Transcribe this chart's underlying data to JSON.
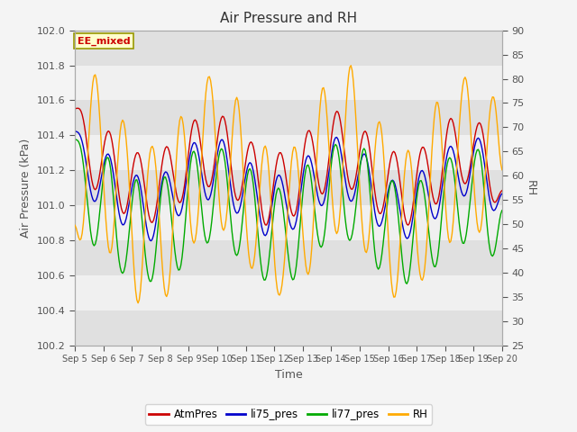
{
  "title": "Air Pressure and RH",
  "xlabel": "Time",
  "ylabel_left": "Air Pressure (kPa)",
  "ylabel_right": "RH",
  "annotation_text": "EE_mixed",
  "ylim_left": [
    100.2,
    102.0
  ],
  "ylim_right": [
    25,
    90
  ],
  "yticks_left": [
    100.2,
    100.4,
    100.6,
    100.8,
    101.0,
    101.2,
    101.4,
    101.6,
    101.8,
    102.0
  ],
  "yticks_right": [
    25,
    30,
    35,
    40,
    45,
    50,
    55,
    60,
    65,
    70,
    75,
    80,
    85,
    90
  ],
  "xtick_labels": [
    "Sep 5",
    "Sep 6",
    "Sep 7",
    "Sep 8",
    "Sep 9",
    "Sep 10",
    "Sep 11",
    "Sep 12",
    "Sep 13",
    "Sep 14",
    "Sep 15",
    "Sep 16",
    "Sep 17",
    "Sep 18",
    "Sep 19",
    "Sep 20"
  ],
  "colors": {
    "AtmPres": "#cc0000",
    "li75_pres": "#0000cc",
    "li77_pres": "#00aa00",
    "RH": "#ffaa00"
  },
  "legend_labels": [
    "AtmPres",
    "li75_pres",
    "li77_pres",
    "RH"
  ],
  "fig_bg_color": "#f4f4f4",
  "plot_bg_light": "#f0f0f0",
  "plot_bg_dark": "#e0e0e0",
  "grid_color": "#ffffff",
  "annotation_bg": "#ffffcc",
  "annotation_border": "#999900",
  "annotation_text_color": "#cc0000",
  "tick_label_color": "#555555",
  "axis_label_color": "#555555"
}
